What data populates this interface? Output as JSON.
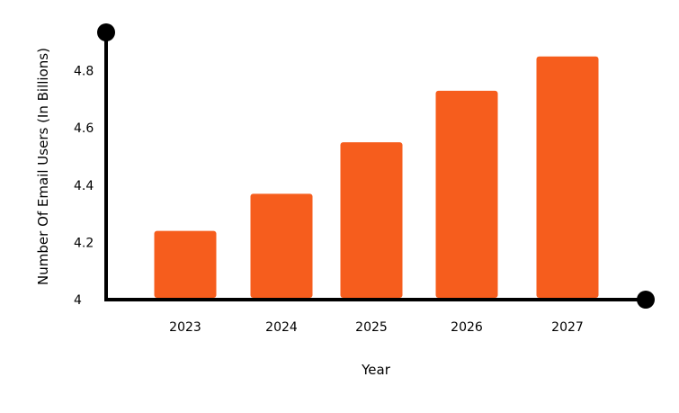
{
  "chart_data": {
    "type": "bar",
    "title": "",
    "xlabel": "Year",
    "ylabel": "Number Of Email Users  (In Billions)",
    "categories": [
      "2023",
      "2024",
      "2025",
      "2026",
      "2027"
    ],
    "values": [
      4.24,
      4.37,
      4.55,
      4.73,
      4.85
    ],
    "ylim": [
      4,
      5
    ],
    "yticks": [
      4,
      4.2,
      4.4,
      4.6,
      4.8
    ],
    "ytick_labels": [
      "4",
      "4.2",
      "4.4",
      "4.6",
      "4.8"
    ],
    "grid": false,
    "legend": "none",
    "colors": {
      "bar": "#F65D1D",
      "axis": "#000000"
    }
  }
}
